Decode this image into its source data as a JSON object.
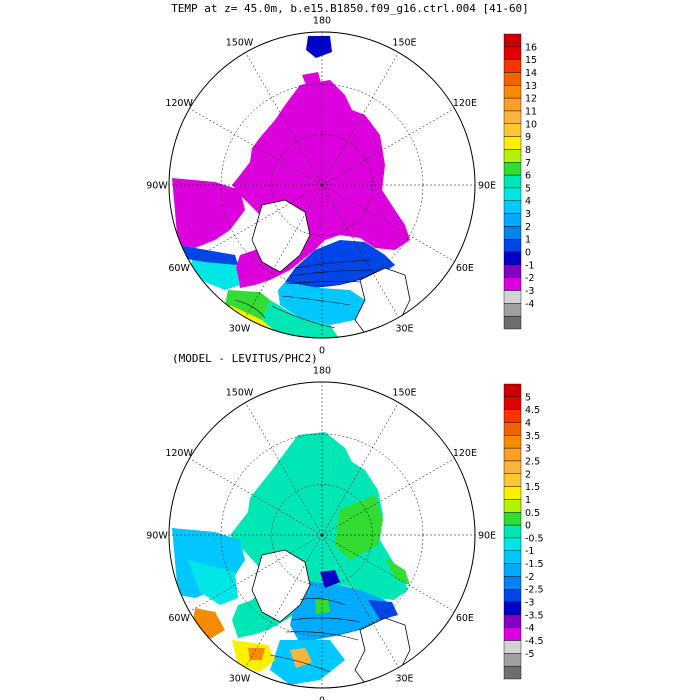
{
  "title": "TEMP at z=   45.0m, b.e15.B1850.f09_g16.ctrl.004 [41-60]",
  "subtitle": "(MODEL - LEVITUS/PHC2)",
  "maps": [
    {
      "id": "top",
      "longitude_labels": [
        "180",
        "150E",
        "120E",
        "90E",
        "60E",
        "30E",
        "0",
        "30W",
        "60W",
        "90W",
        "120W",
        "150W"
      ],
      "colorbar_labels": [
        "16",
        "15",
        "14",
        "13",
        "12",
        "11",
        "10",
        "9",
        "8",
        "7",
        "6",
        "5",
        "4",
        "3",
        "2",
        "1",
        "0",
        "-1",
        "-2",
        "-3",
        "-4"
      ],
      "colorbar_colors": [
        "#c80000",
        "#e10000",
        "#f83200",
        "#f06400",
        "#f58c00",
        "#f8a028",
        "#fab440",
        "#fac832",
        "#faf000",
        "#b4f00a",
        "#32dc32",
        "#00e6b4",
        "#00e6e6",
        "#00c8ff",
        "#00aaff",
        "#0082f0",
        "#0046e6",
        "#0000cd",
        "#8200c8",
        "#dc00dc",
        "#d2d2d2",
        "#a0a0a0",
        "#6e6e6e"
      ]
    },
    {
      "id": "bottom",
      "longitude_labels": [
        "180",
        "150E",
        "120E",
        "90E",
        "60E",
        "30E",
        "0",
        "30W",
        "60W",
        "90W",
        "120W",
        "150W"
      ],
      "colorbar_labels": [
        "5",
        "4.5",
        "4",
        "3.5",
        "3",
        "2.5",
        "2",
        "1.5",
        "1",
        "0.5",
        "0",
        "-0.5",
        "-1",
        "-1.5",
        "-2",
        "-2.5",
        "-3",
        "-3.5",
        "-4",
        "-4.5",
        "-5"
      ],
      "colorbar_colors": [
        "#c80000",
        "#e10000",
        "#f83200",
        "#f06400",
        "#f58c00",
        "#f8a028",
        "#fab440",
        "#fac832",
        "#faf000",
        "#b4f00a",
        "#32dc32",
        "#00e6b4",
        "#00e6e6",
        "#00c8ff",
        "#00aaff",
        "#0082f0",
        "#0046e6",
        "#0000cd",
        "#8200c8",
        "#dc00dc",
        "#d2d2d2",
        "#a0a0a0",
        "#6e6e6e"
      ]
    }
  ],
  "colors": {
    "arctic_top": "#dc00dc",
    "arctic_bottom": "#00e6b4",
    "land": "#ffffff",
    "outline": "#000000"
  }
}
